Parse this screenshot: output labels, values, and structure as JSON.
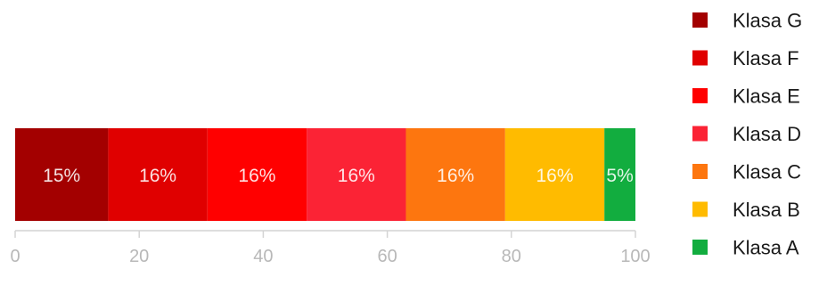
{
  "chart_data": {
    "type": "bar",
    "orientation": "horizontal",
    "stacked": true,
    "title": "",
    "xlabel": "",
    "ylabel": "",
    "xlim": [
      0,
      100
    ],
    "xticks": [
      "0",
      "20",
      "40",
      "60",
      "80",
      "100"
    ],
    "grid": false,
    "legend_position": "right",
    "series": [
      {
        "name": "Klasa G",
        "value": 15,
        "label": "15%",
        "color": "#a30000"
      },
      {
        "name": "Klasa F",
        "value": 16,
        "label": "16%",
        "color": "#e00000"
      },
      {
        "name": "Klasa E",
        "value": 16,
        "label": "16%",
        "color": "#ff0000"
      },
      {
        "name": "Klasa D",
        "value": 16,
        "label": "16%",
        "color": "#fb2335"
      },
      {
        "name": "Klasa C",
        "value": 16,
        "label": "16%",
        "color": "#fd760f"
      },
      {
        "name": "Klasa B",
        "value": 16,
        "label": "16%",
        "color": "#ffbb00"
      },
      {
        "name": "Klasa A",
        "value": 5,
        "label": "5%",
        "color": "#12ad3f"
      }
    ],
    "legend_order": [
      "Klasa G",
      "Klasa F",
      "Klasa E",
      "Klasa D",
      "Klasa C",
      "Klasa B",
      "Klasa A"
    ]
  }
}
